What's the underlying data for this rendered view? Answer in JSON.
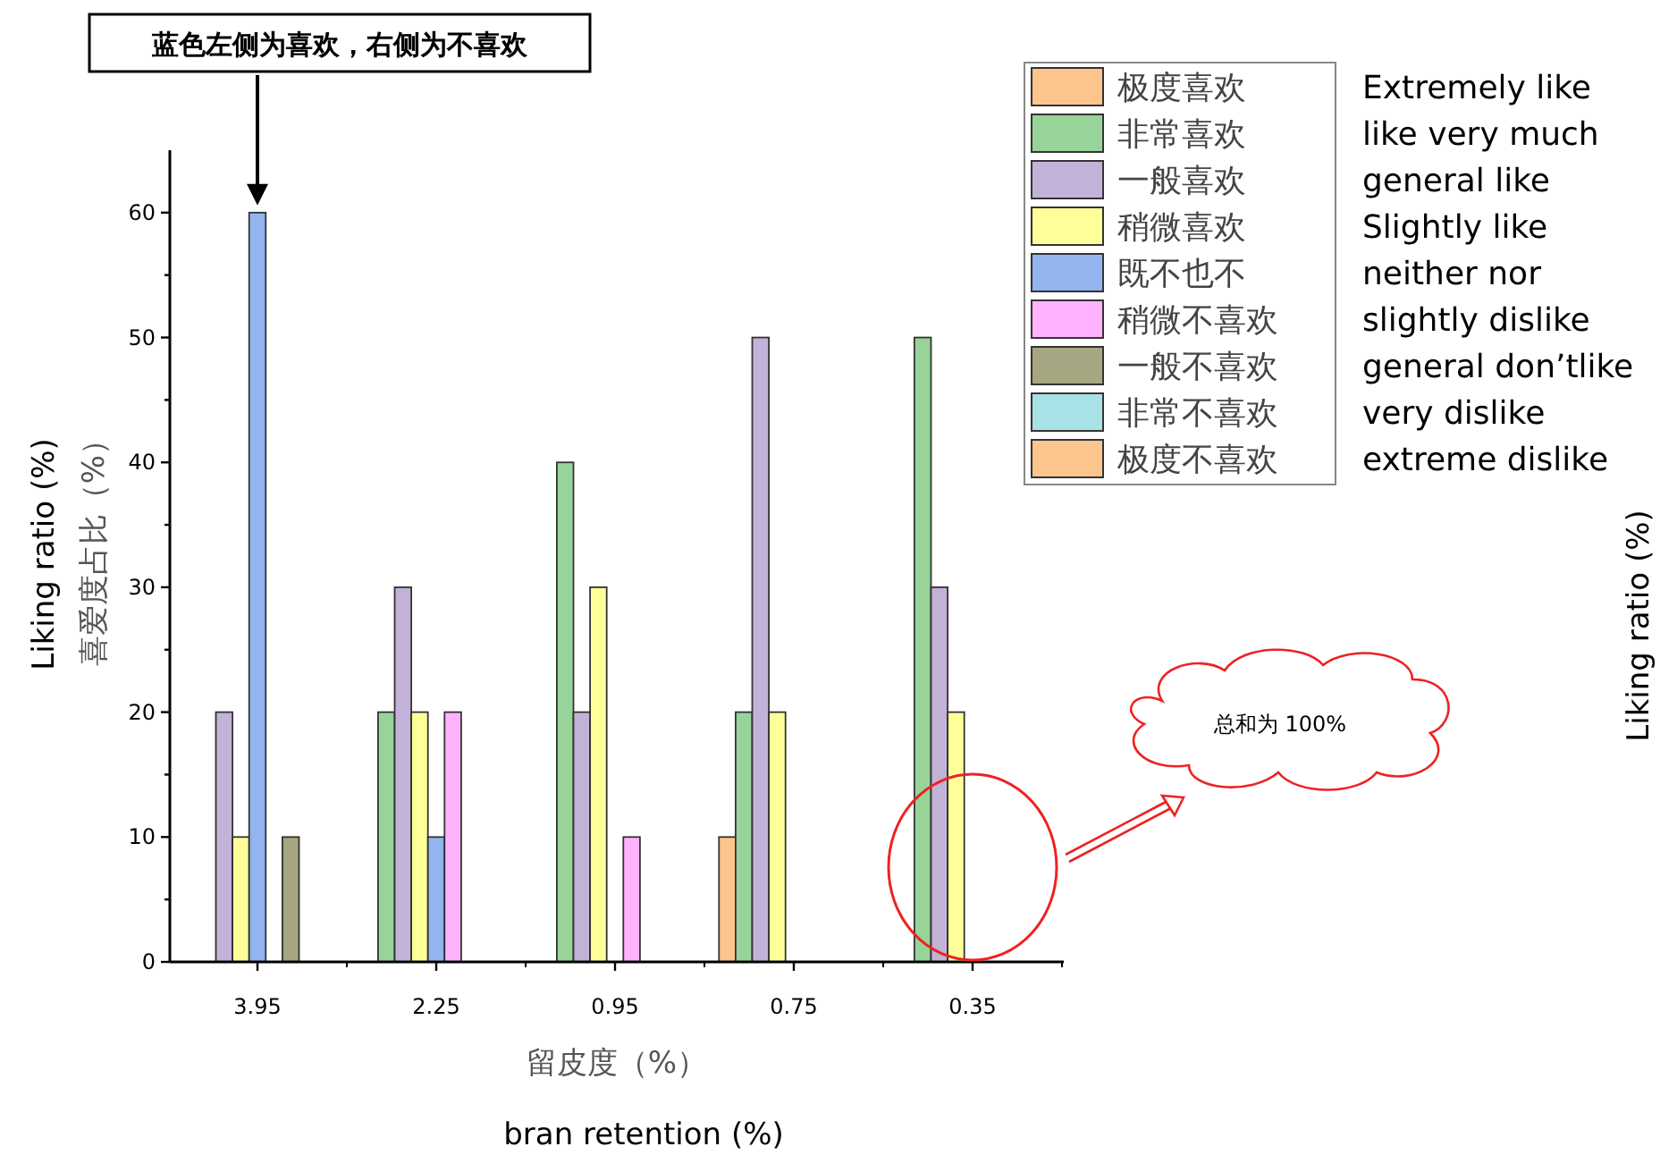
{
  "chart_data": {
    "type": "bar",
    "categories": [
      "3.95",
      "2.25",
      "0.95",
      "0.75",
      "0.35"
    ],
    "series": [
      {
        "name": "极度喜欢",
        "color": "#fcc58c",
        "values": [
          0,
          0,
          0,
          10,
          0
        ]
      },
      {
        "name": "非常喜欢",
        "color": "#98d49a",
        "values": [
          0,
          20,
          40,
          20,
          50
        ]
      },
      {
        "name": "一般喜欢",
        "color": "#c3b2d8",
        "values": [
          20,
          30,
          20,
          50,
          30
        ]
      },
      {
        "name": "稍微喜欢",
        "color": "#ffff99",
        "values": [
          10,
          20,
          30,
          20,
          20
        ]
      },
      {
        "name": "既不也不",
        "color": "#92b4ef",
        "values": [
          60,
          10,
          0,
          0,
          0
        ]
      },
      {
        "name": "稍微不喜欢",
        "color": "#ffb3ff",
        "values": [
          0,
          20,
          10,
          0,
          0
        ]
      },
      {
        "name": "一般不喜欢",
        "color": "#a6a682",
        "values": [
          10,
          0,
          0,
          0,
          0
        ]
      },
      {
        "name": "非常不喜欢",
        "color": "#a8e2e6",
        "values": [
          0,
          0,
          0,
          0,
          0
        ]
      },
      {
        "name": "极度不喜欢",
        "color": "#fcc58c",
        "values": [
          0,
          0,
          0,
          0,
          0
        ]
      }
    ],
    "ylim": [
      0,
      65
    ],
    "yticks": [
      0,
      {
        "value": 5,
        "label": null
      },
      10,
      {
        "value": 15,
        "label": null
      },
      20,
      {
        "value": 25,
        "label": null
      },
      30,
      {
        "value": 35,
        "label": null
      },
      40,
      {
        "value": 45,
        "label": null
      },
      50,
      {
        "value": 55,
        "label": null
      },
      60
    ],
    "ylabel": "喜爱度占比（%）",
    "xlabel": "留皮度（%）",
    "legend": "top right",
    "annotations": [
      "蓝色左侧为喜欢，右侧为不喜欢",
      "总和为 100%",
      "Liking ratio  (%)",
      "Liking ratio  (%)",
      "bran retention  (%)",
      "Extremely like",
      "like very much",
      "general like",
      "Slightly like",
      "neither nor",
      "slightly dislike",
      "general don’tlike",
      "very dislike",
      "extreme dislike"
    ]
  }
}
